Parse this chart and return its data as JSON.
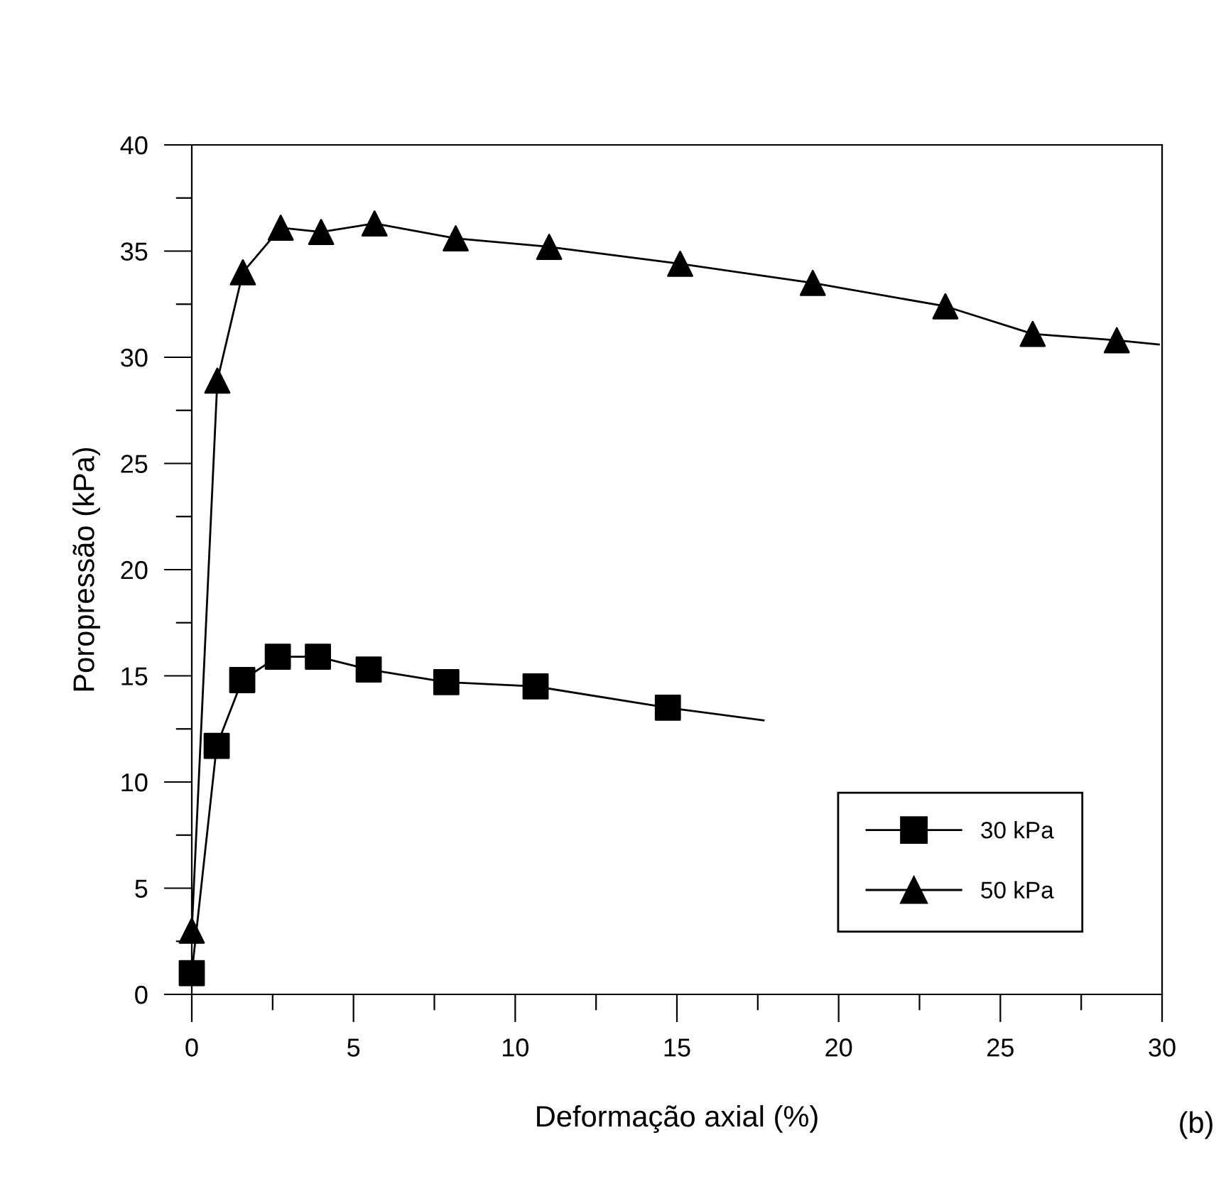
{
  "chart_data": {
    "type": "line",
    "xlabel": "Deformação axial (%)",
    "ylabel": "Poropressão (kPa)",
    "xlim": [
      0,
      30
    ],
    "ylim": [
      0,
      40
    ],
    "xticks": [
      0,
      {
        "value": 2.5,
        "label": null
      },
      5,
      {
        "value": 7.5,
        "label": null
      },
      10,
      {
        "value": 12.5,
        "label": null
      },
      15,
      {
        "value": 17.5,
        "label": null
      },
      20,
      {
        "value": 22.5,
        "label": null
      },
      25,
      {
        "value": 27.5,
        "label": null
      },
      30
    ],
    "yticks": [
      0,
      {
        "value": 2.5,
        "label": null
      },
      5,
      {
        "value": 7.5,
        "label": null
      },
      10,
      {
        "value": 12.5,
        "label": null
      },
      15,
      {
        "value": 17.5,
        "label": null
      },
      20,
      {
        "value": 22.5,
        "label": null
      },
      25,
      {
        "value": 27.5,
        "label": null
      },
      30,
      {
        "value": 32.5,
        "label": null
      },
      35,
      {
        "value": 37.5,
        "label": null
      },
      40
    ],
    "grid": false,
    "legend": "bottom right",
    "annotations": [
      "(b)"
    ],
    "series": [
      {
        "color": "#000000",
        "marker": "none",
        "x": [
          0,
          0.77,
          1.56,
          2.66,
          3.9,
          5.47,
          7.87,
          10.63,
          14.72,
          17.68
        ],
        "values": [
          1.0,
          11.7,
          14.8,
          15.9,
          15.9,
          15.3,
          14.7,
          14.5,
          13.5,
          12.9
        ]
      },
      {
        "color": "#000000",
        "marker": "none",
        "x": [
          0,
          0.79,
          1.58,
          2.75,
          4.0,
          5.65,
          8.16,
          11.05,
          15.1,
          19.2,
          23.3,
          26.0,
          28.6,
          29.9
        ],
        "values": [
          3.0,
          28.9,
          34.0,
          36.1,
          35.9,
          36.3,
          35.6,
          35.2,
          34.4,
          33.5,
          32.4,
          31.1,
          30.8,
          30.6
        ]
      },
      {
        "type": "scatter",
        "name": "30 kPa",
        "color": "#000000",
        "marker": "square",
        "x": [
          0,
          0.77,
          1.56,
          2.66,
          3.9,
          5.47,
          7.87,
          10.63,
          14.72
        ],
        "values": [
          1.0,
          11.7,
          14.8,
          15.9,
          15.9,
          15.3,
          14.7,
          14.5,
          13.5
        ]
      },
      {
        "type": "scatter",
        "name": "50 kPa",
        "color": "#000000",
        "marker": "triangle",
        "x": [
          0,
          0.79,
          1.58,
          2.75,
          4.0,
          5.65,
          8.16,
          11.05,
          15.1,
          19.2,
          23.3,
          26.0,
          28.6
        ],
        "values": [
          3.0,
          28.9,
          34.0,
          36.1,
          35.9,
          36.3,
          35.6,
          35.2,
          34.4,
          33.5,
          32.4,
          31.1,
          30.8
        ]
      }
    ]
  }
}
